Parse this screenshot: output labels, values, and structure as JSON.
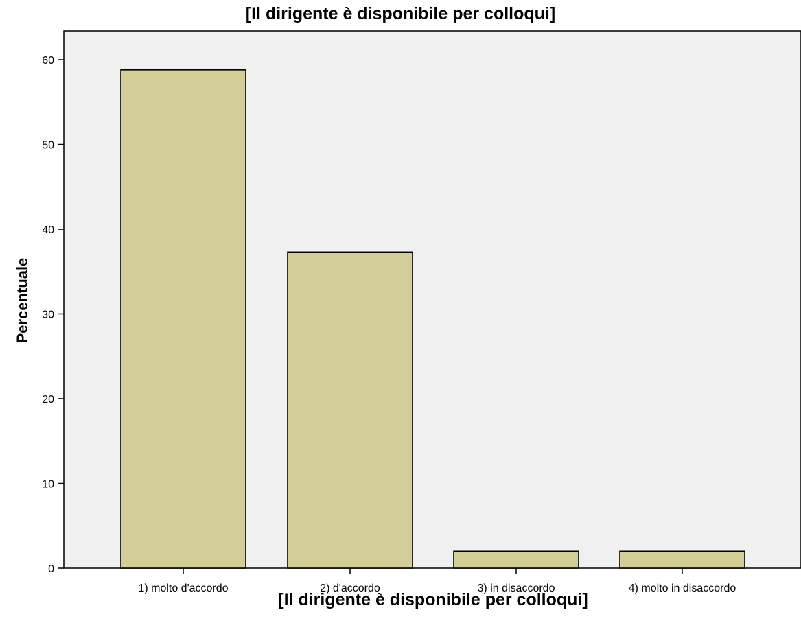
{
  "chart_data": {
    "type": "bar",
    "title": "[Il dirigente è disponibile per colloqui]",
    "xlabel": "[Il dirigente è disponibile per colloqui]",
    "ylabel": "Percentuale",
    "categories": [
      "1) molto d'accordo",
      "2) d'accordo",
      "3) in disaccordo",
      "4) molto in disaccordo"
    ],
    "values": [
      58.8,
      37.3,
      2.0,
      2.0
    ],
    "ylim": [
      0,
      60
    ],
    "yticks": [
      0,
      10,
      20,
      30,
      40,
      50,
      60
    ],
    "grid": false,
    "colors": {
      "bar_fill": "#d3cd98",
      "bar_stroke": "#000000",
      "plot_background": "#f0f0f0"
    }
  }
}
